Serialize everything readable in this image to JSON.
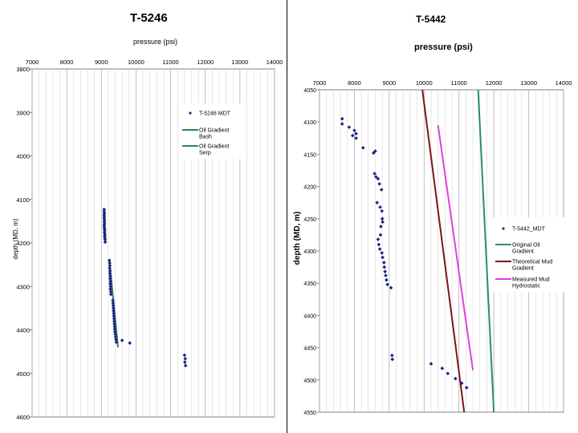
{
  "chart_data": [
    {
      "type": "scatter",
      "title": "T-5246",
      "xlabel": "pressure (psi)",
      "ylabel": "depth (MD, m)",
      "xlim": [
        7000,
        14000
      ],
      "ylim": [
        3800,
        4600
      ],
      "y_inverted": true,
      "xticks": [
        7000,
        8000,
        9000,
        10000,
        11000,
        12000,
        13000,
        14000
      ],
      "yticks": [
        3800,
        3900,
        4000,
        4100,
        4200,
        4300,
        4400,
        4500,
        4600
      ],
      "grid": "vertical",
      "legend": "top-right",
      "series": [
        {
          "name": "T-5246 MDT",
          "kind": "points",
          "color": "#1a237e",
          "x": [
            9080,
            9080,
            9085,
            9080,
            9085,
            9080,
            9090,
            9085,
            9090,
            9080,
            9085,
            9090,
            9095,
            9090,
            9100,
            9095,
            9100,
            9105,
            9110,
            9230,
            9240,
            9245,
            9240,
            9250,
            9245,
            9255,
            9250,
            9260,
            9255,
            9265,
            9260,
            9270,
            9275,
            9330,
            9335,
            9340,
            9345,
            9350,
            9355,
            9360,
            9365,
            9370,
            9375,
            9380,
            9385,
            9390,
            9400,
            9410,
            9420,
            9430,
            9600,
            9820,
            11400,
            11420,
            11410,
            11430
          ],
          "y": [
            4123,
            4128,
            4132,
            4136,
            4140,
            4144,
            4148,
            4152,
            4156,
            4160,
            4164,
            4168,
            4172,
            4176,
            4180,
            4184,
            4188,
            4192,
            4198,
            4240,
            4246,
            4252,
            4258,
            4264,
            4270,
            4276,
            4282,
            4288,
            4294,
            4300,
            4306,
            4312,
            4318,
            4332,
            4338,
            4344,
            4350,
            4356,
            4362,
            4368,
            4374,
            4380,
            4386,
            4392,
            4398,
            4404,
            4410,
            4416,
            4422,
            4428,
            4424,
            4430,
            4458,
            4466,
            4474,
            4482
          ]
        },
        {
          "name": "Oil Gradient Bash",
          "kind": "line",
          "color": "#2e7d6b",
          "x": [
            9070,
            9120
          ],
          "y": [
            4120,
            4200
          ]
        },
        {
          "name": "Oil Gradient Serp",
          "kind": "line",
          "color": "#2e7d6b",
          "x": [
            9230,
            9480
          ],
          "y": [
            4240,
            4440
          ]
        }
      ]
    },
    {
      "type": "scatter",
      "title": "T-5442",
      "xlabel": "pressure (psi)",
      "ylabel": "depth (MD, m)",
      "xlim": [
        7000,
        14000
      ],
      "ylim": [
        4050,
        4550
      ],
      "y_inverted": true,
      "xticks": [
        7000,
        8000,
        9000,
        10000,
        11000,
        12000,
        13000,
        14000
      ],
      "yticks": [
        4050,
        4100,
        4150,
        4200,
        4250,
        4300,
        4350,
        4400,
        4450,
        4500,
        4550
      ],
      "grid": "vertical",
      "legend": "right",
      "series": [
        {
          "name": "T-5442_MDT",
          "kind": "points",
          "color": "#1a237e",
          "x": [
            7650,
            7650,
            7850,
            8000,
            8050,
            7950,
            8050,
            8250,
            8550,
            8600,
            8580,
            8620,
            8680,
            8720,
            8780,
            8650,
            8740,
            8790,
            8800,
            8810,
            8760,
            8750,
            8680,
            8700,
            8730,
            8790,
            8810,
            8850,
            8860,
            8880,
            8900,
            8920,
            8950,
            9050,
            9080,
            9090,
            10200,
            10520,
            10680,
            10900,
            11080,
            11220
          ],
          "y": [
            4095,
            4103,
            4108,
            4113,
            4118,
            4121,
            4125,
            4140,
            4148,
            4145,
            4180,
            4185,
            4188,
            4196,
            4205,
            4225,
            4232,
            4238,
            4250,
            4255,
            4262,
            4275,
            4282,
            4290,
            4297,
            4303,
            4310,
            4318,
            4325,
            4332,
            4338,
            4345,
            4352,
            4357,
            4462,
            4468,
            4475,
            4482,
            4490,
            4498,
            4505,
            4512
          ]
        },
        {
          "name": "Original Oil Gradient",
          "kind": "line",
          "color": "#2e8b6e",
          "x": [
            11550,
            12000
          ],
          "y": [
            4050,
            4550
          ]
        },
        {
          "name": "Theoretical Mud Gradient",
          "kind": "line",
          "color": "#7b1518",
          "x": [
            9950,
            11150
          ],
          "y": [
            4050,
            4550
          ]
        },
        {
          "name": "Measured Mud Hydrostatic",
          "kind": "line",
          "color": "#e040e0",
          "x": [
            10400,
            11400
          ],
          "y": [
            4105,
            4485
          ]
        }
      ]
    }
  ]
}
